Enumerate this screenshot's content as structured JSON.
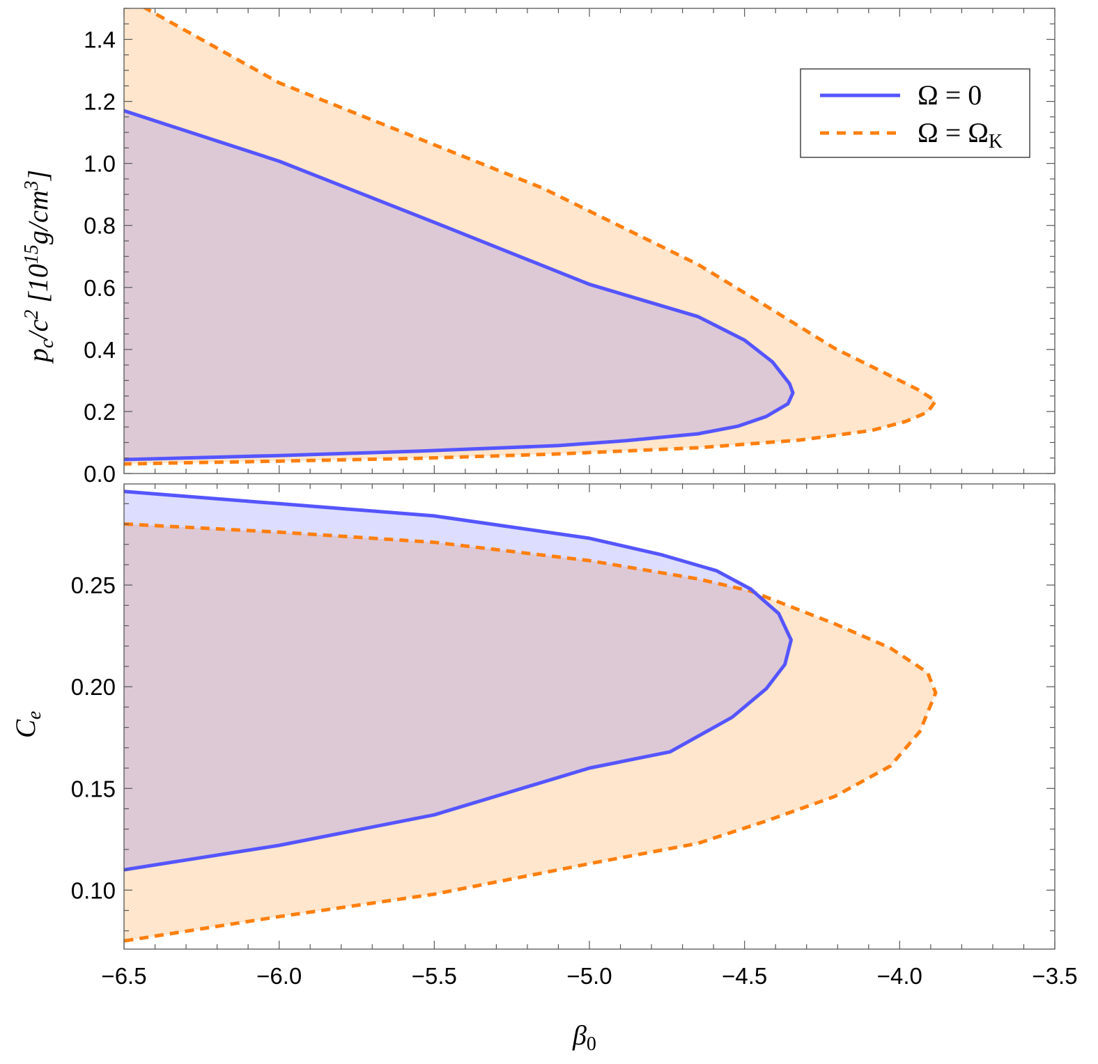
{
  "chart_data": [
    {
      "type": "area",
      "panel": "top",
      "xlabel": "β0",
      "ylabel": "pc/c² [10^15 g/cm³]",
      "ylabel_parts": {
        "main": "p",
        "sub": "c",
        "mid": "/c",
        "sup2": "2",
        "bracket_open": " [10",
        "exp": "15",
        "unit": "g/cm",
        "exp3": "3",
        "bracket_close": "]"
      },
      "xlim": [
        -6.5,
        -3.5
      ],
      "ylim": [
        0.0,
        1.5
      ],
      "x_ticks": [
        "-6.5",
        "-6.0",
        "-5.5",
        "-5.0",
        "-4.5",
        "-4.0",
        "-3.5"
      ],
      "y_ticks": [
        "0.0",
        "0.2",
        "0.4",
        "0.6",
        "0.8",
        "1.0",
        "1.2",
        "1.4"
      ],
      "legend": {
        "placement": "top-right",
        "entries": [
          "Ω = 0",
          "Ω = ΩK"
        ]
      },
      "series": [
        {
          "name": "Ω = 0",
          "color": "#5555ff",
          "style": "solid",
          "fill": "#5555ff",
          "upper": [
            [
              -6.5,
              1.17
            ],
            [
              -6.0,
              1.007
            ],
            [
              -5.5,
              0.81
            ],
            [
              -5.0,
              0.61
            ],
            [
              -4.65,
              0.506
            ],
            [
              -4.5,
              0.43
            ],
            [
              -4.41,
              0.36
            ],
            [
              -4.355,
              0.29
            ],
            [
              -4.344,
              0.26
            ]
          ],
          "lower": [
            [
              -4.344,
              0.26
            ],
            [
              -4.36,
              0.225
            ],
            [
              -4.43,
              0.184
            ],
            [
              -4.52,
              0.153
            ],
            [
              -4.65,
              0.128
            ],
            [
              -4.88,
              0.106
            ],
            [
              -5.1,
              0.09
            ],
            [
              -5.55,
              0.072
            ],
            [
              -6.0,
              0.058
            ],
            [
              -6.5,
              0.045
            ]
          ]
        },
        {
          "name": "Ω = ΩK",
          "color": "#ff7f0e",
          "style": "dashed",
          "fill": "#ff9a33",
          "upper": [
            [
              -6.6,
              1.62
            ],
            [
              -6.43,
              1.5
            ],
            [
              -6.0,
              1.26
            ],
            [
              -5.5,
              1.06
            ],
            [
              -5.15,
              0.92
            ],
            [
              -4.65,
              0.674
            ],
            [
              -4.43,
              0.54
            ],
            [
              -4.21,
              0.404
            ],
            [
              -4.03,
              0.315
            ],
            [
              -3.94,
              0.27
            ],
            [
              -3.884,
              0.234
            ]
          ],
          "lower": [
            [
              -3.884,
              0.234
            ],
            [
              -3.91,
              0.198
            ],
            [
              -3.98,
              0.168
            ],
            [
              -4.09,
              0.139
            ],
            [
              -4.32,
              0.108
            ],
            [
              -4.65,
              0.083
            ],
            [
              -5.1,
              0.063
            ],
            [
              -5.55,
              0.049
            ],
            [
              -6.0,
              0.04
            ],
            [
              -6.5,
              0.031
            ]
          ]
        }
      ]
    },
    {
      "type": "area",
      "panel": "bottom",
      "xlabel": "β0",
      "ylabel": "Ce",
      "xlim": [
        -6.5,
        -3.5
      ],
      "ylim": [
        0.071,
        0.2997
      ],
      "x_ticks": [
        "-6.5",
        "-6.0",
        "-5.5",
        "-5.0",
        "-4.5",
        "-4.0",
        "-3.5"
      ],
      "y_ticks": [
        "0.10",
        "0.15",
        "0.20",
        "0.25"
      ],
      "series": [
        {
          "name": "Ω = 0",
          "color": "#5555ff",
          "style": "solid",
          "fill": "#5555ff",
          "upper": [
            [
              -6.5,
              0.296
            ],
            [
              -6.0,
              0.29
            ],
            [
              -5.5,
              0.284
            ],
            [
              -5.0,
              0.273
            ],
            [
              -4.77,
              0.265
            ],
            [
              -4.59,
              0.257
            ],
            [
              -4.48,
              0.248
            ],
            [
              -4.39,
              0.236
            ],
            [
              -4.35,
              0.223
            ]
          ],
          "lower": [
            [
              -4.35,
              0.223
            ],
            [
              -4.37,
              0.211
            ],
            [
              -4.43,
              0.199
            ],
            [
              -4.54,
              0.185
            ],
            [
              -4.74,
              0.168
            ],
            [
              -5.0,
              0.16
            ],
            [
              -5.5,
              0.137
            ],
            [
              -6.0,
              0.122
            ],
            [
              -6.5,
              0.11
            ]
          ]
        },
        {
          "name": "Ω = ΩK",
          "color": "#ff7f0e",
          "style": "dashed",
          "fill": "#ff9a33",
          "upper": [
            [
              -6.5,
              0.28
            ],
            [
              -6.0,
              0.276
            ],
            [
              -5.5,
              0.271
            ],
            [
              -5.0,
              0.262
            ],
            [
              -4.65,
              0.253
            ],
            [
              -4.48,
              0.247
            ],
            [
              -4.21,
              0.231
            ],
            [
              -4.03,
              0.219
            ],
            [
              -3.91,
              0.207
            ],
            [
              -3.884,
              0.197
            ]
          ],
          "lower": [
            [
              -3.884,
              0.197
            ],
            [
              -3.935,
              0.178
            ],
            [
              -4.03,
              0.161
            ],
            [
              -4.21,
              0.146
            ],
            [
              -4.43,
              0.134
            ],
            [
              -4.65,
              0.123
            ],
            [
              -5.0,
              0.113
            ],
            [
              -5.5,
              0.098
            ],
            [
              -6.0,
              0.087
            ],
            [
              -6.5,
              0.075
            ]
          ]
        }
      ]
    }
  ],
  "labels": {
    "xlabel_main": "β",
    "xlabel_sub": "0",
    "ylabel_bottom_main": "C",
    "ylabel_bottom_sub": "e",
    "legend_0": "Ω = 0",
    "legend_k_main": "Ω = Ω",
    "legend_k_sub": "K"
  }
}
